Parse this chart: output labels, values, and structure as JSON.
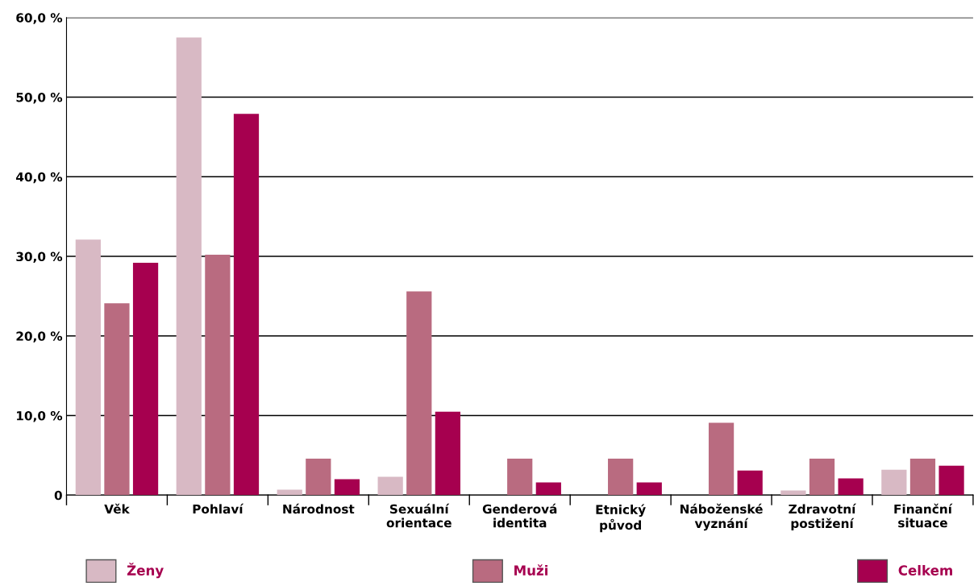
{
  "chart_data": {
    "type": "bar",
    "categories": [
      "Věk",
      "Pohlaví",
      "Národnost",
      "Sexuální\norientace",
      "Genderová\nidentita",
      "Etnický\npůvod",
      "Náboženské\nvyznání",
      "Zdravotní\npostižení",
      "Finanční\nsituace"
    ],
    "series": [
      {
        "name": "Ženy",
        "color": "#d8b9c4",
        "values": [
          32.1,
          57.5,
          0.7,
          2.3,
          0,
          0,
          0,
          0.6,
          3.2
        ]
      },
      {
        "name": "Muži",
        "color": "#b96b80",
        "values": [
          24.1,
          30.2,
          4.6,
          25.6,
          4.6,
          4.6,
          9.1,
          4.6,
          4.6
        ]
      },
      {
        "name": "Celkem",
        "color": "#a6004f",
        "values": [
          29.2,
          47.9,
          2.0,
          10.5,
          1.6,
          1.6,
          3.1,
          2.1,
          3.7
        ]
      }
    ],
    "ylim": [
      0,
      60
    ],
    "yticks": [
      {
        "value": 0,
        "label": "0"
      },
      {
        "value": 10,
        "label": "10,0 %"
      },
      {
        "value": 20,
        "label": "20,0 %"
      },
      {
        "value": 30,
        "label": "30,0 %"
      },
      {
        "value": 40,
        "label": "40,0 %"
      },
      {
        "value": 50,
        "label": "50,0 %"
      },
      {
        "value": 60,
        "label": "60,0 %"
      }
    ],
    "grid": "y",
    "legend": "bottom"
  }
}
